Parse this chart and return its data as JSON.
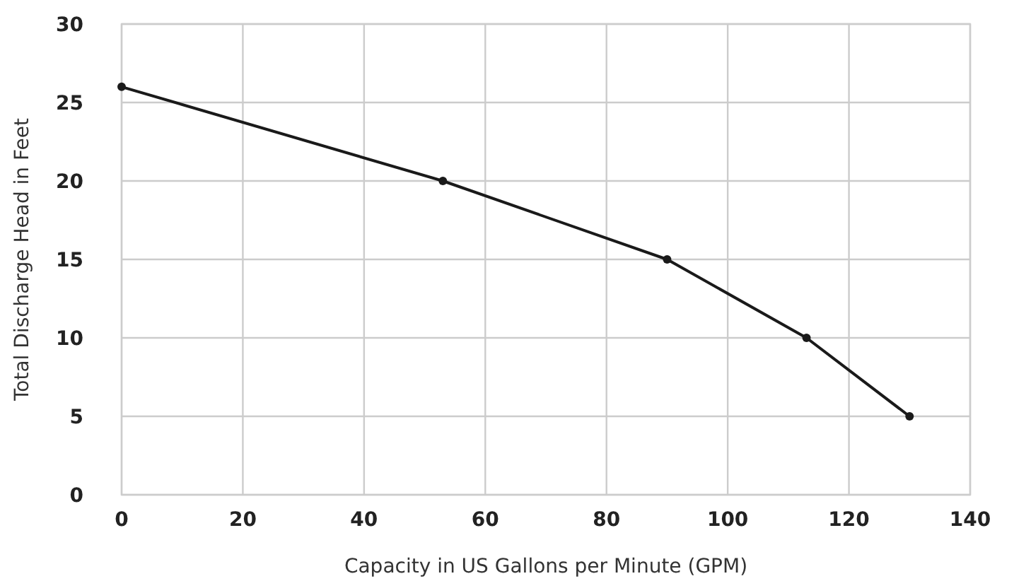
{
  "chart_data": {
    "type": "line",
    "xlabel": "Capacity in US Gallons per Minute (GPM)",
    "ylabel": "Total Discharge Head in Feet",
    "x": [
      0,
      53,
      90,
      113,
      130
    ],
    "series": [
      {
        "color": "#1a1a1a",
        "values": [
          26,
          20,
          15,
          10,
          5
        ]
      }
    ],
    "xlim": [
      0,
      140
    ],
    "xticks": [
      0,
      20,
      40,
      60,
      80,
      100,
      120,
      140
    ],
    "ylim": [
      0,
      30
    ],
    "yticks": [
      0,
      5,
      10,
      15,
      20,
      25,
      30
    ],
    "grid": true,
    "marker": "circle",
    "line_style": "solid"
  }
}
